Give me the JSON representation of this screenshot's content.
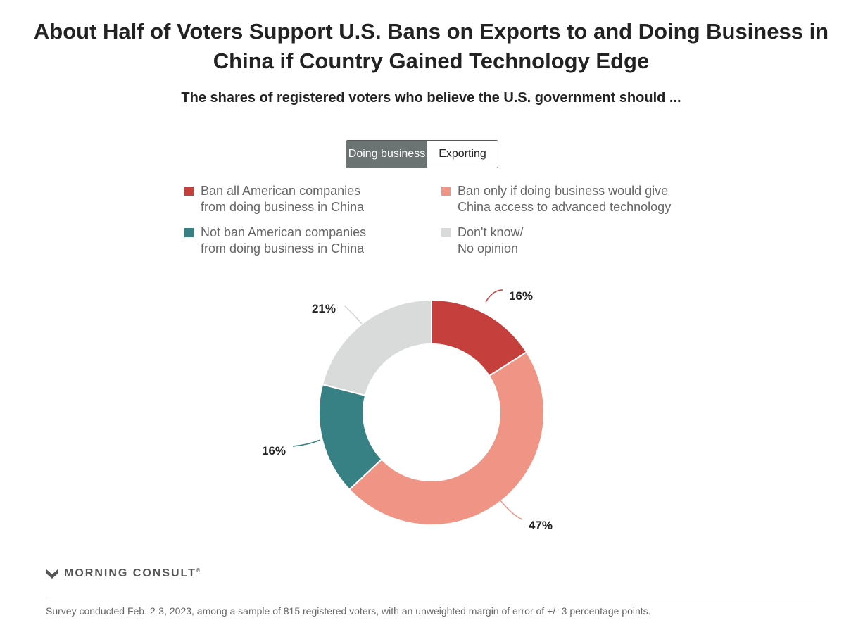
{
  "header": {
    "title": "About Half of Voters Support U.S. Bans on Exports to and Doing Business in China if Country Gained Technology Edge",
    "subtitle": "The shares of registered voters who believe the U.S. government should ..."
  },
  "toggle": {
    "active_label": "Doing business",
    "inactive_label": "Exporting"
  },
  "chart_data": {
    "type": "pie",
    "title": "The shares of registered voters who believe the U.S. government should ...",
    "slices": [
      {
        "name": "Ban all American companies from doing business in China",
        "value": 16,
        "label": "16%",
        "color": "#c5403d"
      },
      {
        "name": "Ban only if doing business would give China access to advanced technology",
        "value": 47,
        "label": "47%",
        "color": "#f09585"
      },
      {
        "name": "Not ban American companies from doing business in China",
        "value": 16,
        "label": "16%",
        "color": "#378084"
      },
      {
        "name": "Don't know/ No opinion",
        "value": 21,
        "label": "21%",
        "color": "#d9dbdb"
      }
    ],
    "legend": [
      {
        "line1": "Ban all American companies",
        "line2": "from doing business in China",
        "color": "#c5403d"
      },
      {
        "line1": "Ban only if doing business would give",
        "line2": "China access to advanced technology",
        "color": "#f09585"
      },
      {
        "line1": "Not ban American companies",
        "line2": "from doing business in China",
        "color": "#378084"
      },
      {
        "line1": "Don't know/",
        "line2": "No opinion",
        "color": "#d9dbdb"
      }
    ],
    "legend_position": "top"
  },
  "footer": {
    "logo_text": "MORNING CONSULT",
    "logo_mark": "®",
    "note": "Survey conducted Feb. 2-3, 2023, among a sample of 815 registered voters, with an unweighted margin of error of +/- 3 percentage points."
  }
}
